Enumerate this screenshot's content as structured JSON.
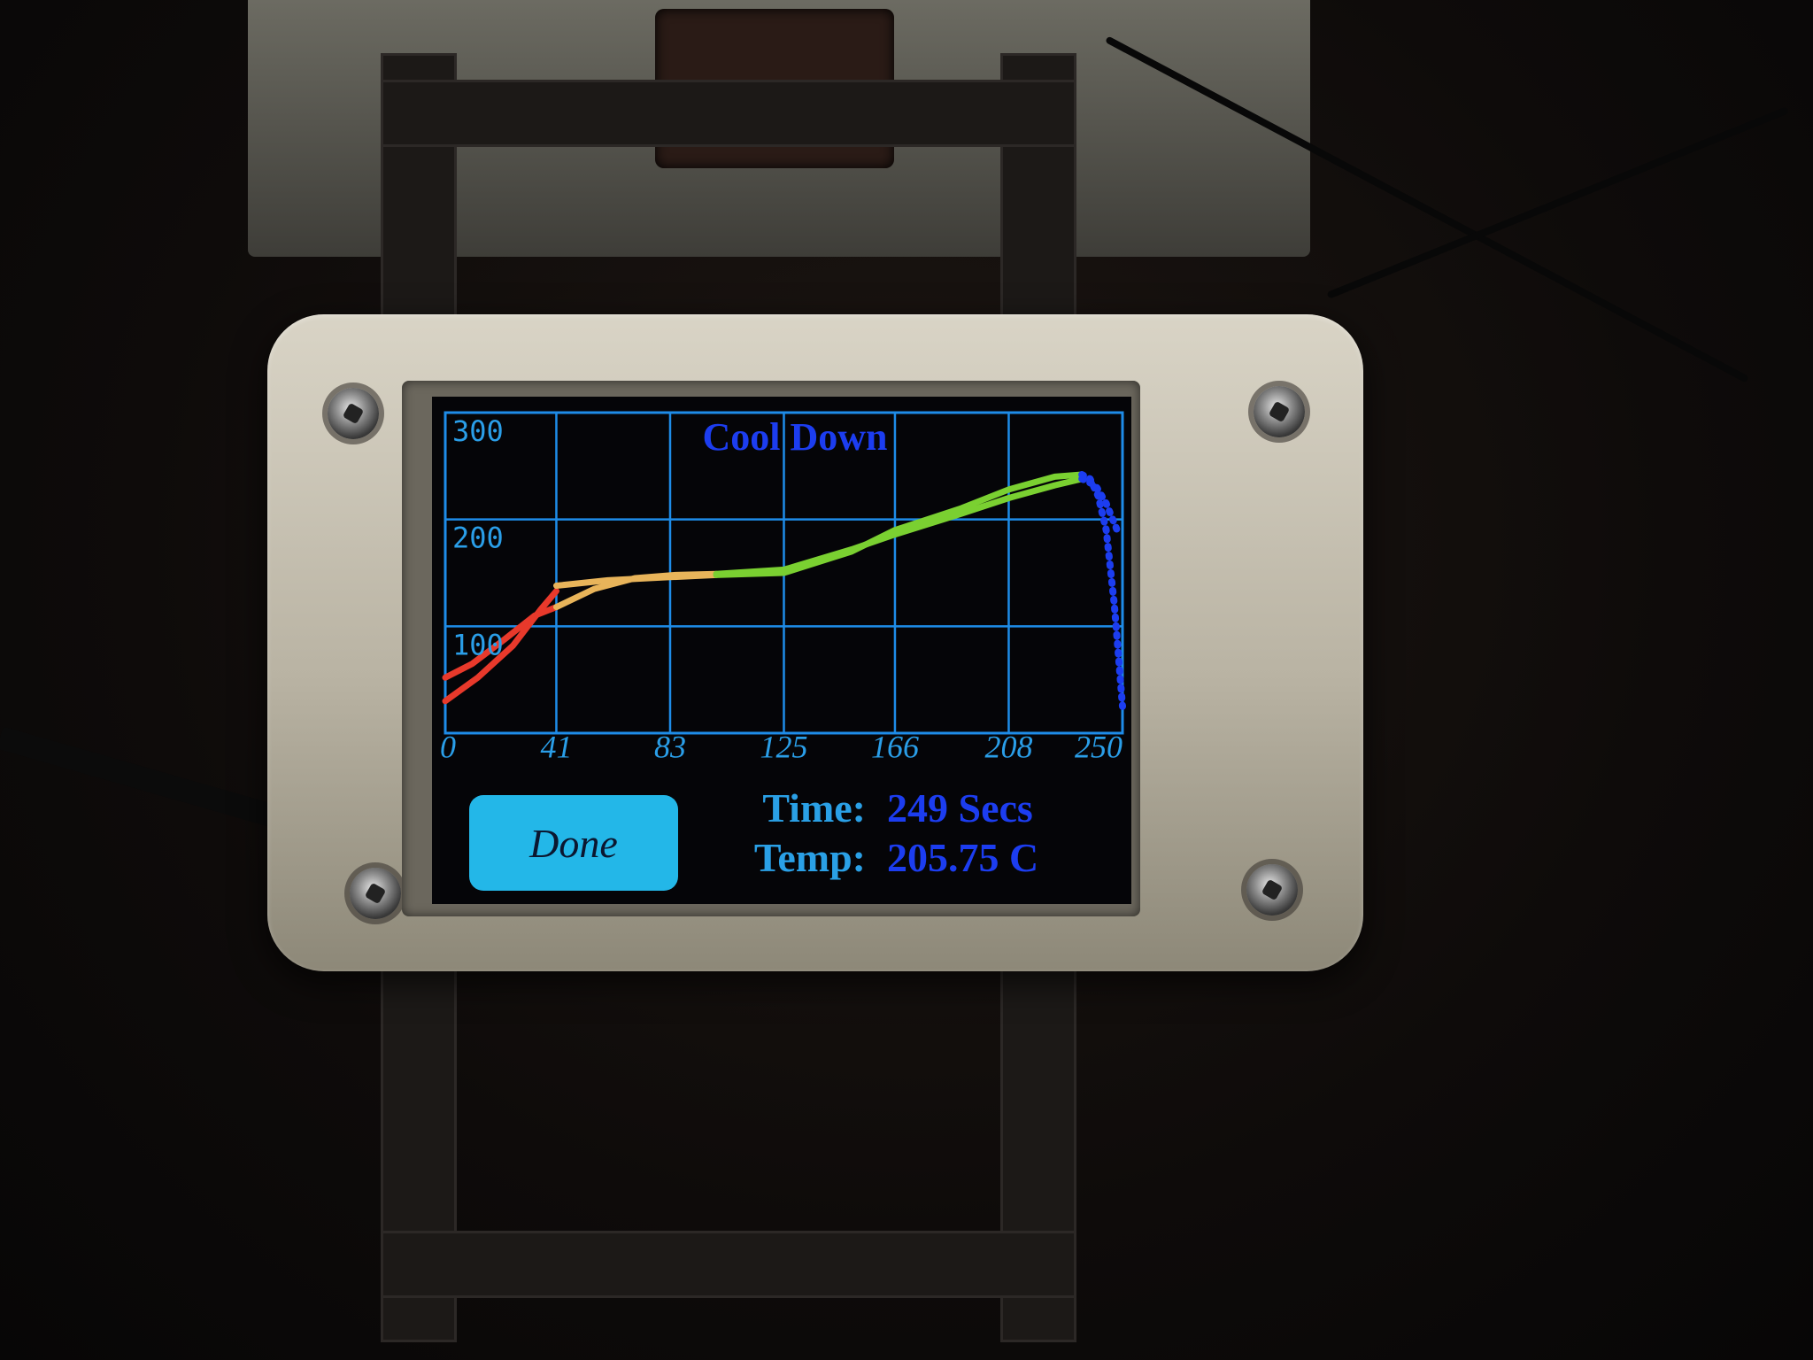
{
  "screen": {
    "title": "Cool Down",
    "done_label": "Done",
    "time_label": "Time:",
    "time_value": "249 Secs",
    "temp_label": "Temp:",
    "temp_value": "205.75 C"
  },
  "colors": {
    "grid": "#1e8ce8",
    "title": "#1c3df0",
    "tick": "#2a9ee8",
    "button": "#23b7e8",
    "preheat": "#e8392b",
    "soak": "#e8b45a",
    "reflow": "#7ad031",
    "cool": "#1c3df0"
  },
  "chart_data": {
    "type": "line",
    "title": "Cool Down",
    "xlim": [
      0,
      250
    ],
    "ylim": [
      0,
      300
    ],
    "x_ticks": [
      "0",
      "41",
      "83",
      "125",
      "166",
      "208",
      "250"
    ],
    "y_ticks": [
      "100",
      "200",
      "300"
    ],
    "grid": true,
    "series": [
      {
        "phase": "preheat",
        "profile": [
          [
            0,
            30
          ],
          [
            12,
            52
          ],
          [
            25,
            82
          ],
          [
            35,
            115
          ],
          [
            41,
            133
          ]
        ],
        "measured": [
          [
            0,
            52
          ],
          [
            10,
            65
          ],
          [
            22,
            88
          ],
          [
            33,
            110
          ],
          [
            41,
            118
          ]
        ]
      },
      {
        "phase": "soak",
        "profile": [
          [
            41,
            138
          ],
          [
            60,
            143
          ],
          [
            83,
            146
          ],
          [
            100,
            148
          ]
        ],
        "measured": [
          [
            41,
            118
          ],
          [
            55,
            135
          ],
          [
            70,
            145
          ],
          [
            85,
            148
          ],
          [
            100,
            149
          ]
        ]
      },
      {
        "phase": "reflow",
        "profile": [
          [
            100,
            148
          ],
          [
            125,
            150
          ],
          [
            150,
            170
          ],
          [
            166,
            190
          ],
          [
            190,
            210
          ],
          [
            208,
            228
          ],
          [
            225,
            240
          ],
          [
            235,
            242
          ]
        ],
        "measured": [
          [
            100,
            149
          ],
          [
            125,
            153
          ],
          [
            150,
            172
          ],
          [
            166,
            186
          ],
          [
            190,
            205
          ],
          [
            208,
            220
          ],
          [
            225,
            232
          ],
          [
            235,
            238
          ]
        ]
      },
      {
        "phase": "cool",
        "profile": [
          [
            235,
            242
          ],
          [
            238,
            238
          ],
          [
            241,
            222
          ],
          [
            244,
            190
          ],
          [
            247,
            120
          ],
          [
            250,
            25
          ]
        ],
        "measured": [
          [
            235,
            238
          ],
          [
            240,
            232
          ],
          [
            244,
            215
          ],
          [
            248,
            190
          ]
        ]
      }
    ]
  }
}
